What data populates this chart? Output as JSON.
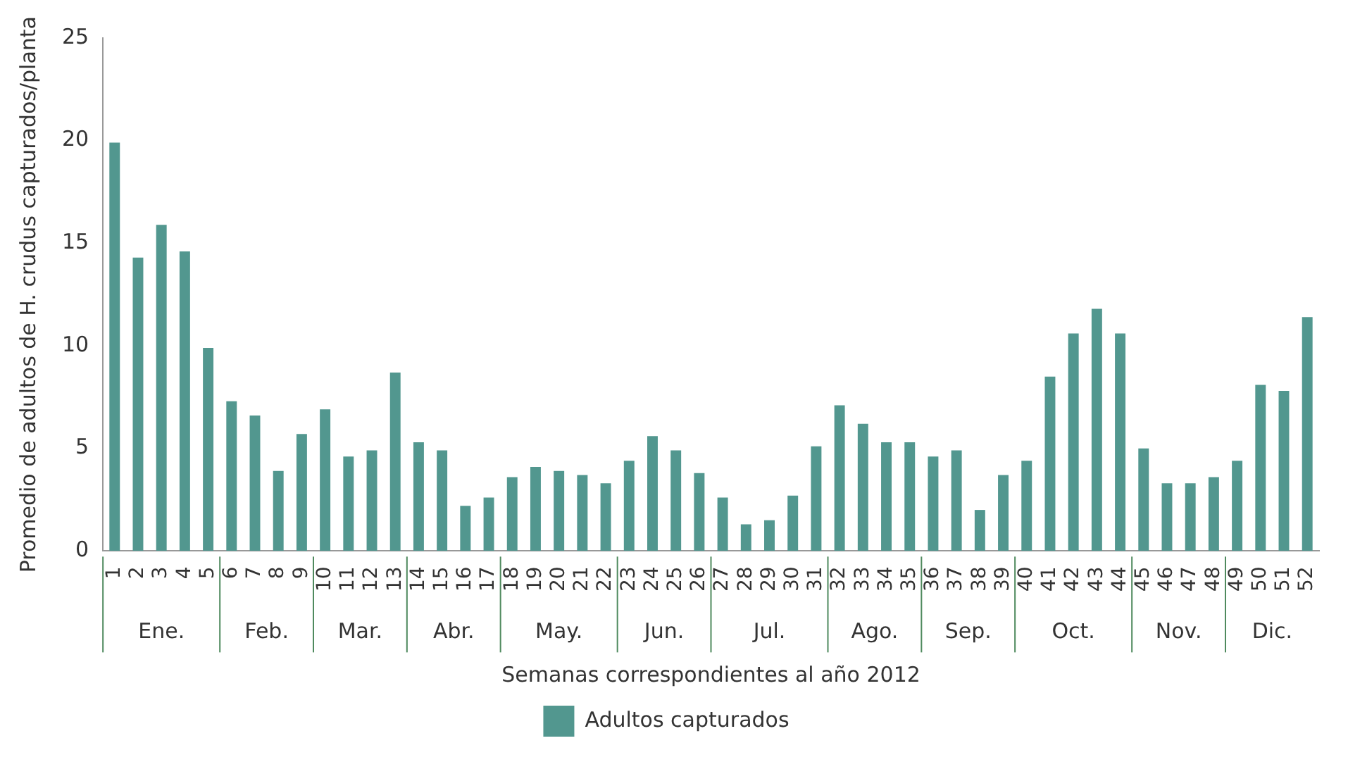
{
  "chart_data": {
    "type": "bar",
    "xlabel": "Semanas correspondientes al año 2012",
    "ylabel": "Promedio de adultos de H. crudus capturados/planta",
    "categories": [
      "1",
      "2",
      "3",
      "4",
      "5",
      "6",
      "7",
      "8",
      "9",
      "10",
      "11",
      "12",
      "13",
      "14",
      "15",
      "16",
      "17",
      "18",
      "19",
      "20",
      "21",
      "22",
      "23",
      "24",
      "25",
      "26",
      "27",
      "28",
      "29",
      "30",
      "31",
      "32",
      "33",
      "34",
      "35",
      "36",
      "37",
      "38",
      "39",
      "40",
      "41",
      "42",
      "43",
      "44",
      "45",
      "46",
      "47",
      "48",
      "49",
      "50",
      "51",
      "52"
    ],
    "series": [
      {
        "name": "Adultos capturados",
        "color": "#52978f",
        "values": [
          19.9,
          14.3,
          15.9,
          14.6,
          9.9,
          7.3,
          6.6,
          3.9,
          5.7,
          6.9,
          4.6,
          4.9,
          8.7,
          5.3,
          4.9,
          2.2,
          2.6,
          3.6,
          4.1,
          3.9,
          3.7,
          3.3,
          4.4,
          5.6,
          4.9,
          3.8,
          2.6,
          1.3,
          1.5,
          2.7,
          5.1,
          7.1,
          6.2,
          5.3,
          5.3,
          4.6,
          4.9,
          2.0,
          3.7,
          4.4,
          8.5,
          10.6,
          11.8,
          10.6,
          5.0,
          3.3,
          3.3,
          3.6,
          4.4,
          8.1,
          7.8,
          11.4
        ]
      }
    ],
    "ylim": [
      0,
      25
    ],
    "yticks": [
      0,
      5,
      10,
      15,
      20,
      25
    ],
    "grid": false,
    "legend": "bottom",
    "annotations": [
      "Ene.",
      "Feb.",
      "Mar.",
      "Abr.",
      "May.",
      "Jun.",
      "Jul.",
      "Ago.",
      "Sep.",
      "Oct.",
      "Nov.",
      "Dic."
    ]
  }
}
